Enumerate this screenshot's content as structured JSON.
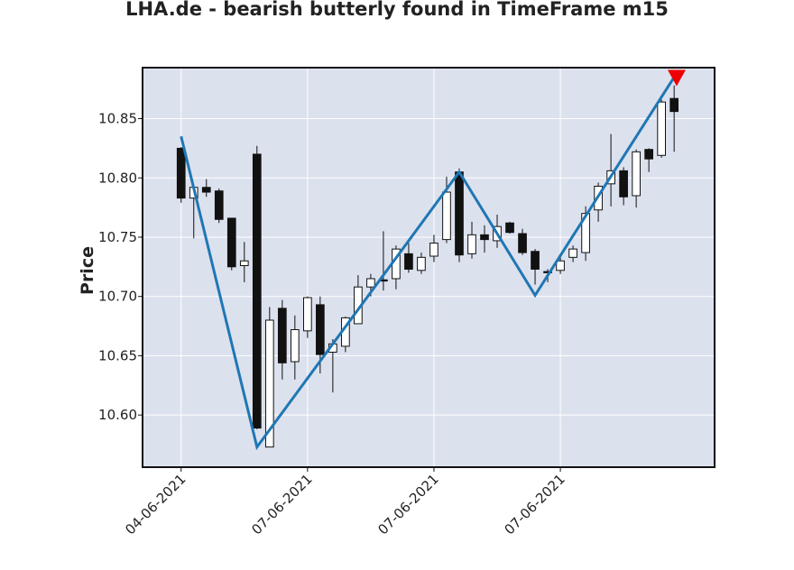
{
  "chart_data": {
    "type": "candlestick",
    "title": "LHA.de - bearish butterly found in TimeFrame m15",
    "ylabel": "Price",
    "xlabel": "",
    "ylim": [
      10.556,
      10.893
    ],
    "y_ticks": [
      "10.60",
      "10.65",
      "10.70",
      "10.75",
      "10.80",
      "10.85"
    ],
    "x_tick_labels": [
      "04-06-2021",
      "07-06-2021",
      "07-06-2021",
      "07-06-2021"
    ],
    "x_tick_index": [
      0,
      10,
      20,
      30
    ],
    "xlim": [
      -3.05,
      42.2
    ],
    "grid": true,
    "colors": {
      "background": "#dce1ee",
      "up_body": "#ffffff",
      "down_body": "#111111",
      "wick": "#111111",
      "pattern_line": "#1f77b4",
      "marker": "#ee0000"
    },
    "candles": [
      {
        "o": 10.825,
        "h": 10.826,
        "l": 10.779,
        "c": 10.783
      },
      {
        "o": 10.783,
        "h": 10.792,
        "l": 10.749,
        "c": 10.792
      },
      {
        "o": 10.792,
        "h": 10.799,
        "l": 10.784,
        "c": 10.788
      },
      {
        "o": 10.789,
        "h": 10.791,
        "l": 10.762,
        "c": 10.765
      },
      {
        "o": 10.766,
        "h": 10.766,
        "l": 10.722,
        "c": 10.725
      },
      {
        "o": 10.726,
        "h": 10.746,
        "l": 10.712,
        "c": 10.73
      },
      {
        "o": 10.82,
        "h": 10.827,
        "l": 10.588,
        "c": 10.589
      },
      {
        "o": 10.573,
        "h": 10.691,
        "l": 10.573,
        "c": 10.68
      },
      {
        "o": 10.69,
        "h": 10.697,
        "l": 10.63,
        "c": 10.644
      },
      {
        "o": 10.645,
        "h": 10.684,
        "l": 10.63,
        "c": 10.672
      },
      {
        "o": 10.671,
        "h": 10.7,
        "l": 10.665,
        "c": 10.699
      },
      {
        "o": 10.693,
        "h": 10.7,
        "l": 10.635,
        "c": 10.651
      },
      {
        "o": 10.653,
        "h": 10.664,
        "l": 10.619,
        "c": 10.66
      },
      {
        "o": 10.658,
        "h": 10.683,
        "l": 10.653,
        "c": 10.682
      },
      {
        "o": 10.677,
        "h": 10.718,
        "l": 10.677,
        "c": 10.708
      },
      {
        "o": 10.708,
        "h": 10.719,
        "l": 10.7,
        "c": 10.715
      },
      {
        "o": 10.714,
        "h": 10.755,
        "l": 10.705,
        "c": 10.713
      },
      {
        "o": 10.715,
        "h": 10.743,
        "l": 10.706,
        "c": 10.74
      },
      {
        "o": 10.736,
        "h": 10.745,
        "l": 10.72,
        "c": 10.723
      },
      {
        "o": 10.722,
        "h": 10.737,
        "l": 10.719,
        "c": 10.733
      },
      {
        "o": 10.734,
        "h": 10.752,
        "l": 10.729,
        "c": 10.745
      },
      {
        "o": 10.748,
        "h": 10.801,
        "l": 10.745,
        "c": 10.788
      },
      {
        "o": 10.805,
        "h": 10.808,
        "l": 10.729,
        "c": 10.735
      },
      {
        "o": 10.736,
        "h": 10.763,
        "l": 10.732,
        "c": 10.752
      },
      {
        "o": 10.752,
        "h": 10.76,
        "l": 10.737,
        "c": 10.748
      },
      {
        "o": 10.747,
        "h": 10.769,
        "l": 10.741,
        "c": 10.759
      },
      {
        "o": 10.762,
        "h": 10.763,
        "l": 10.753,
        "c": 10.754
      },
      {
        "o": 10.753,
        "h": 10.757,
        "l": 10.735,
        "c": 10.737
      },
      {
        "o": 10.738,
        "h": 10.74,
        "l": 10.71,
        "c": 10.723
      },
      {
        "o": 10.721,
        "h": 10.723,
        "l": 10.712,
        "c": 10.72
      },
      {
        "o": 10.722,
        "h": 10.733,
        "l": 10.719,
        "c": 10.73
      },
      {
        "o": 10.733,
        "h": 10.743,
        "l": 10.729,
        "c": 10.74
      },
      {
        "o": 10.737,
        "h": 10.776,
        "l": 10.73,
        "c": 10.77
      },
      {
        "o": 10.773,
        "h": 10.796,
        "l": 10.763,
        "c": 10.793
      },
      {
        "o": 10.795,
        "h": 10.837,
        "l": 10.776,
        "c": 10.806
      },
      {
        "o": 10.806,
        "h": 10.809,
        "l": 10.777,
        "c": 10.784
      },
      {
        "o": 10.785,
        "h": 10.824,
        "l": 10.775,
        "c": 10.822
      },
      {
        "o": 10.824,
        "h": 10.825,
        "l": 10.805,
        "c": 10.816
      },
      {
        "o": 10.819,
        "h": 10.866,
        "l": 10.817,
        "c": 10.864
      },
      {
        "o": 10.867,
        "h": 10.878,
        "l": 10.822,
        "c": 10.856
      }
    ],
    "pattern": [
      {
        "i": 0,
        "price": 10.835
      },
      {
        "i": 6,
        "price": 10.573
      },
      {
        "i": 22,
        "price": 10.805
      },
      {
        "i": 28,
        "price": 10.701
      },
      {
        "i": 39,
        "price": 10.885
      }
    ],
    "signal": {
      "type": "bearish",
      "i": 39.2,
      "price": 10.885
    }
  }
}
